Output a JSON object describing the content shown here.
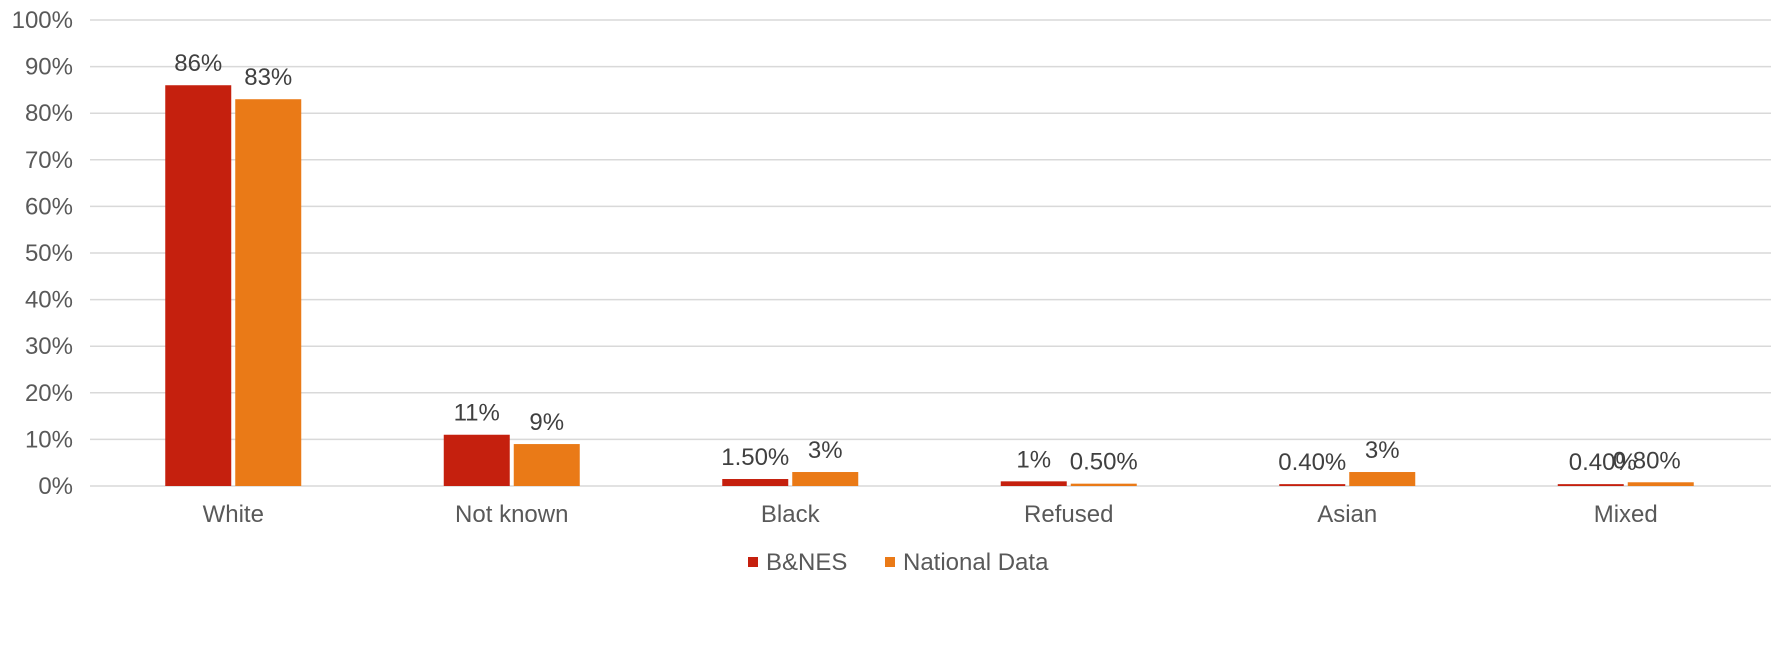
{
  "chart_data": {
    "type": "bar",
    "categories": [
      "White",
      "Not known",
      "Black",
      "Refused",
      "Asian",
      "Mixed"
    ],
    "series": [
      {
        "name": "B&NES",
        "color": "#c5200e",
        "values": [
          86,
          11,
          1.5,
          1,
          0.4,
          0.4
        ],
        "labels": [
          "86%",
          "11%",
          "1.50%",
          "1%",
          "0.40%",
          "0.40%"
        ]
      },
      {
        "name": "National Data",
        "color": "#ea7a17",
        "values": [
          83,
          9,
          3,
          0.5,
          3,
          0.8
        ],
        "labels": [
          "83%",
          "9%",
          "3%",
          "0.50%",
          "3%",
          "0.80%"
        ]
      }
    ],
    "ylim": [
      0,
      100
    ],
    "yticks": [
      0,
      10,
      20,
      30,
      40,
      50,
      60,
      70,
      80,
      90,
      100
    ],
    "ytick_labels": [
      "0%",
      "10%",
      "20%",
      "30%",
      "40%",
      "50%",
      "60%",
      "70%",
      "80%",
      "90%",
      "100%"
    ],
    "grid": true,
    "legend_position": "bottom-center"
  }
}
